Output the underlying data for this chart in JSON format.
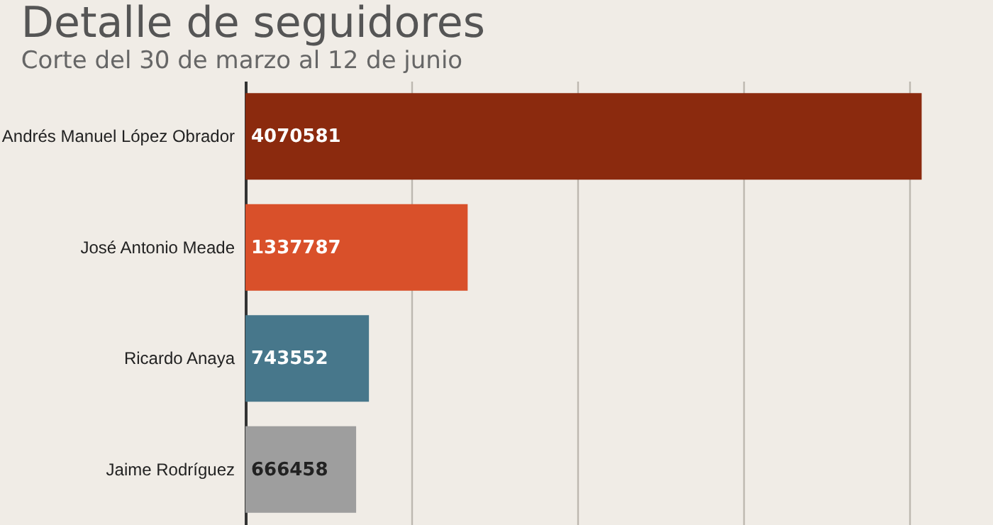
{
  "chart_data": {
    "type": "bar",
    "orientation": "horizontal",
    "title": "Detalle de seguidores",
    "subtitle": "Corte del 30 de marzo al 12 de junio",
    "categories": [
      "Andrés Manuel López Obrador",
      "José Antonio Meade",
      "Ricardo Anaya",
      "Jaime Rodríguez"
    ],
    "values": [
      4070581,
      1337787,
      743552,
      666458
    ],
    "colors": [
      "#8b2a0e",
      "#d9502a",
      "#47778b",
      "#9e9e9e"
    ],
    "xlim": [
      0,
      4500000
    ],
    "xticks": [
      {
        "value": 0,
        "label": null
      },
      {
        "value": 1000000,
        "label": null
      },
      {
        "value": 2000000,
        "label": null
      },
      {
        "value": 3000000,
        "label": null
      },
      {
        "value": 4000000,
        "label": null
      }
    ],
    "grid": "x",
    "tick_labels": "y",
    "data_labels": true
  }
}
